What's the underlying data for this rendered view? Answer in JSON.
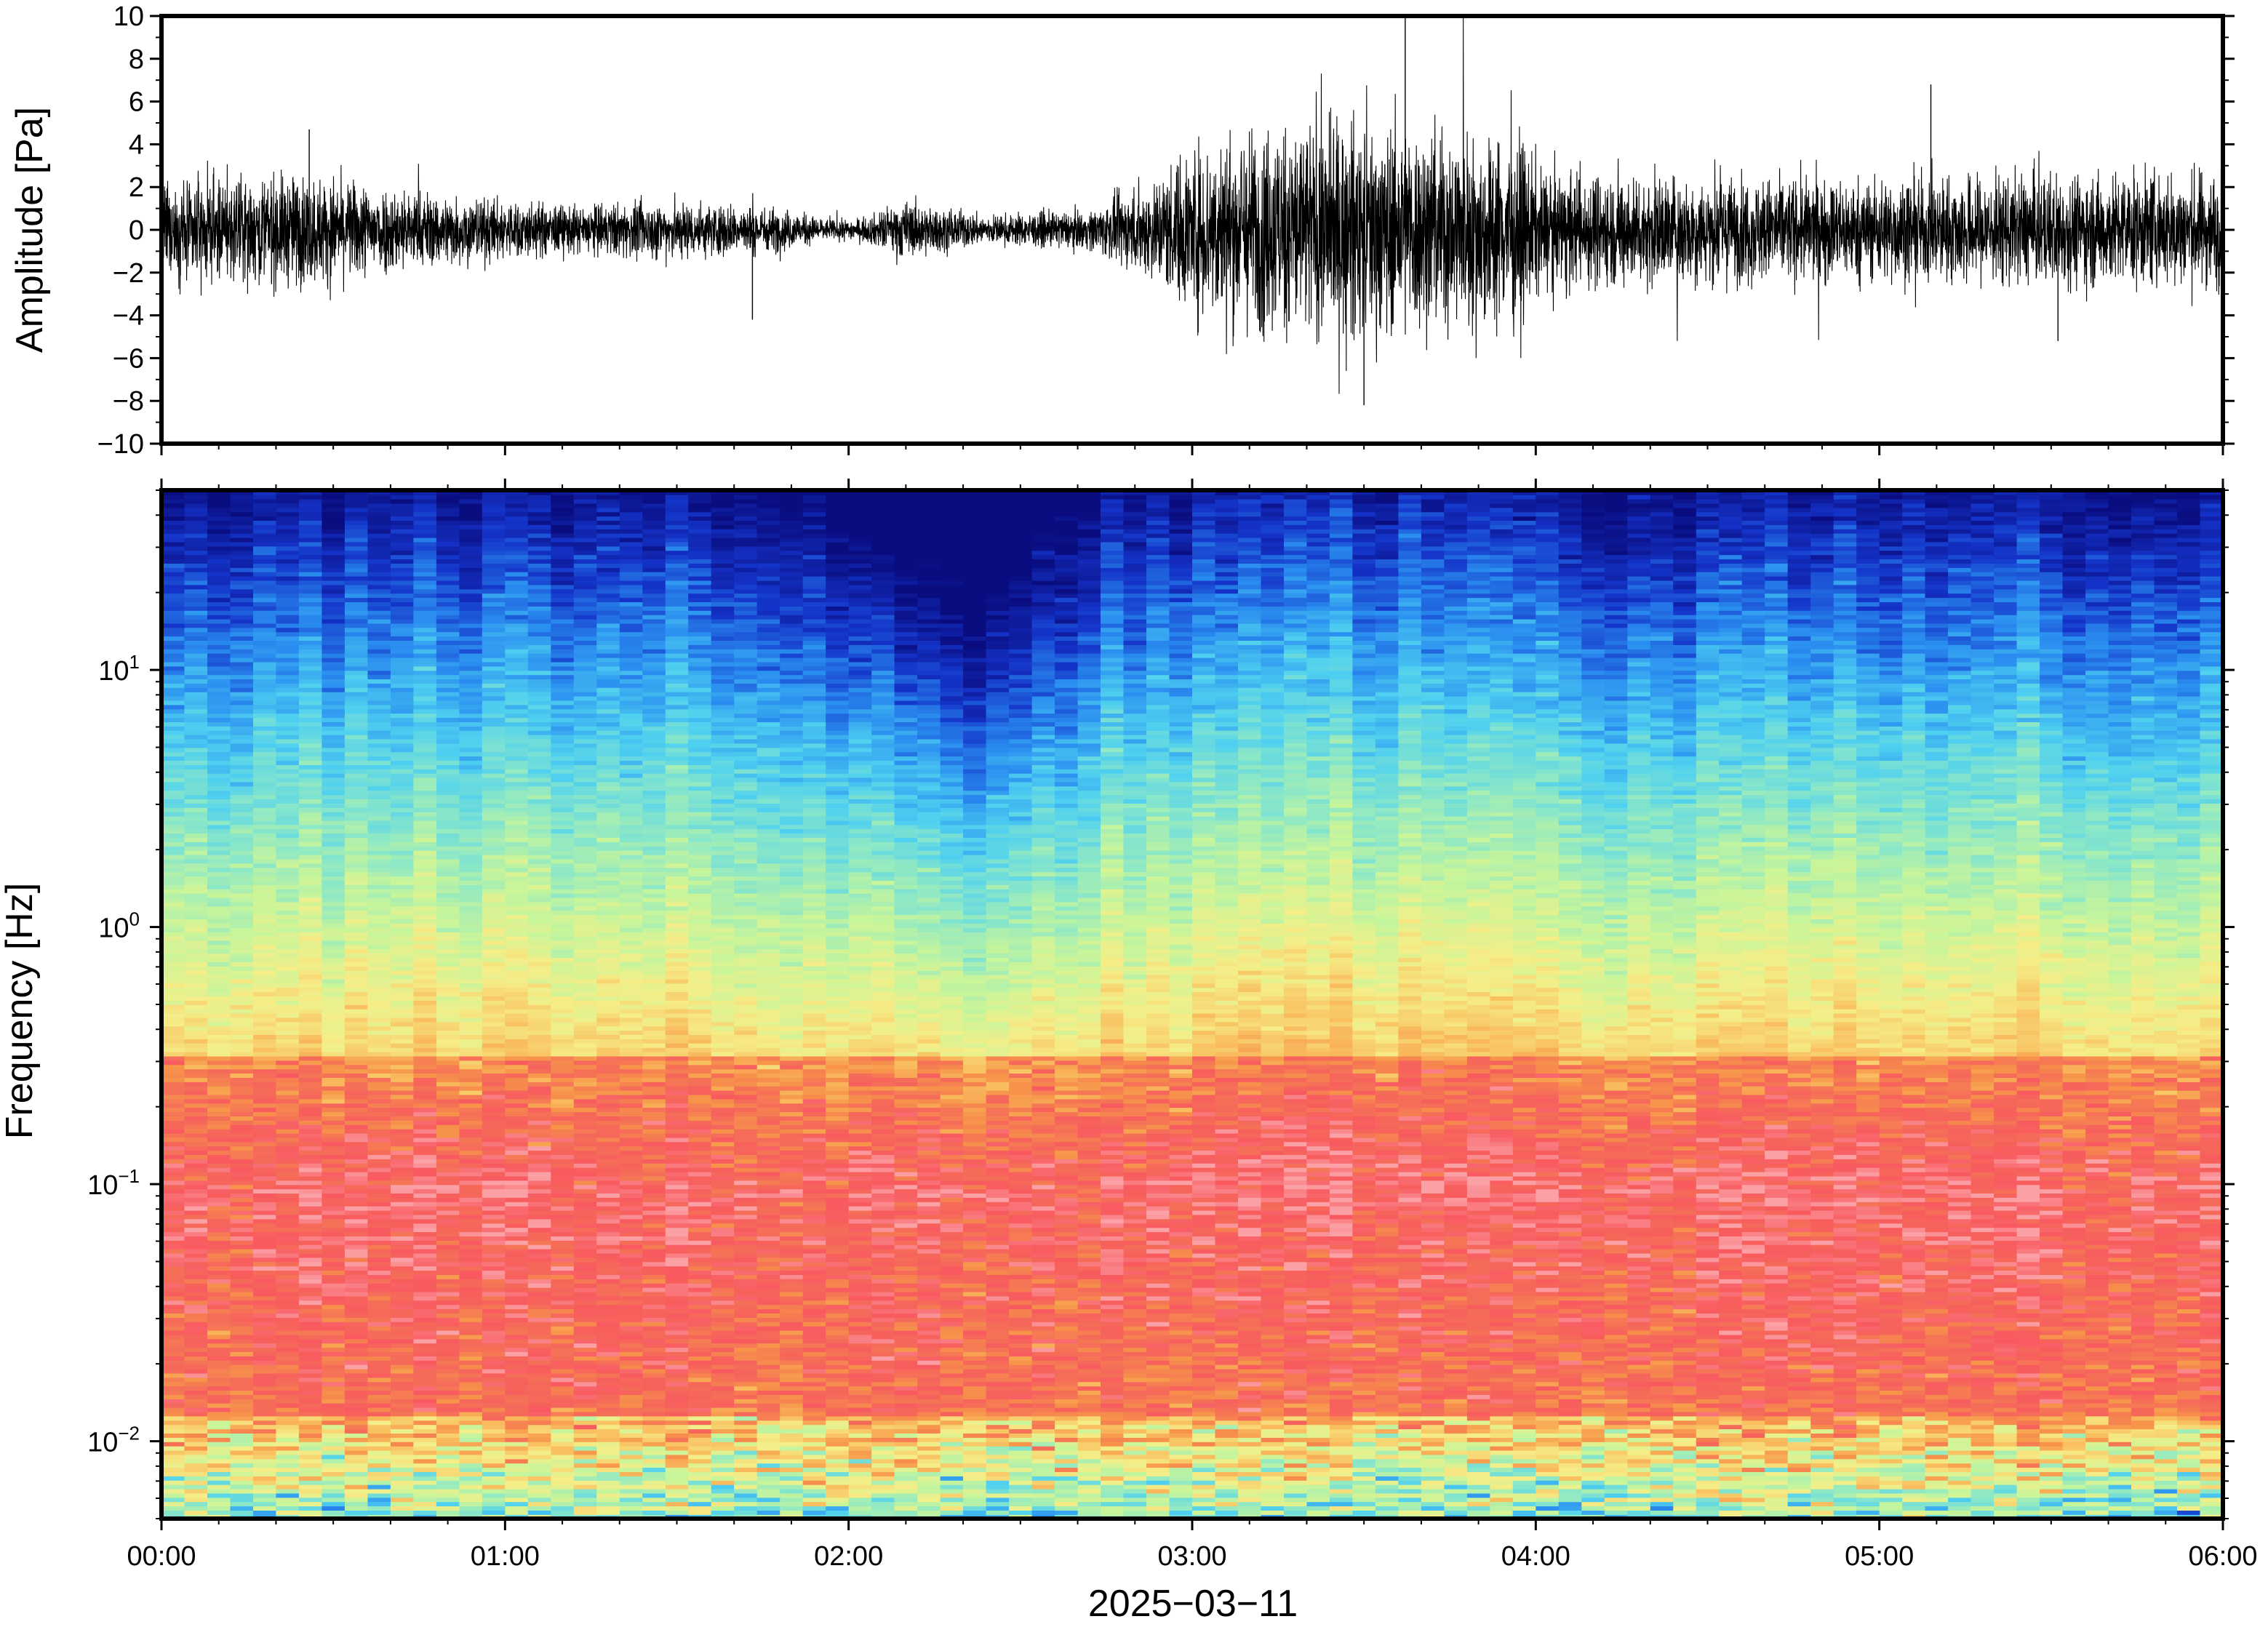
{
  "chart_data": [
    {
      "type": "line",
      "ylabel": "Amplitude [Pa]",
      "ylim": [
        -10,
        10
      ],
      "y_ticks": [
        "10",
        "8",
        "6",
        "4",
        "2",
        "0",
        "−2",
        "−4",
        "−6",
        "−8",
        "−10"
      ],
      "x_ticks": [
        "00:00",
        "01:00",
        "02:00",
        "03:00",
        "04:00",
        "05:00",
        "06:00"
      ],
      "xlim_hours": [
        0,
        6
      ],
      "line_color": "#000000",
      "envelope": [
        {
          "t": 0.0,
          "a": 1.9
        },
        {
          "t": 0.4,
          "a": 2.3
        },
        {
          "t": 0.8,
          "a": 1.5
        },
        {
          "t": 1.2,
          "a": 1.0
        },
        {
          "t": 1.5,
          "a": 1.2
        },
        {
          "t": 1.8,
          "a": 0.9
        },
        {
          "t": 1.95,
          "a": 0.4
        },
        {
          "t": 2.05,
          "a": 0.5
        },
        {
          "t": 2.15,
          "a": 1.2
        },
        {
          "t": 2.4,
          "a": 0.6
        },
        {
          "t": 2.7,
          "a": 0.8
        },
        {
          "t": 2.9,
          "a": 2.2
        },
        {
          "t": 3.0,
          "a": 3.5
        },
        {
          "t": 3.3,
          "a": 4.6
        },
        {
          "t": 3.6,
          "a": 4.3
        },
        {
          "t": 3.95,
          "a": 3.8
        },
        {
          "t": 4.02,
          "a": 2.4
        },
        {
          "t": 4.5,
          "a": 2.2
        },
        {
          "t": 5.0,
          "a": 2.1
        },
        {
          "t": 5.5,
          "a": 2.3
        },
        {
          "t": 6.0,
          "a": 2.4
        }
      ],
      "peaks": [
        {
          "t": 0.43,
          "v": 4.7
        },
        {
          "t": 3.62,
          "v": 9.9
        },
        {
          "t": 3.5,
          "v": -8.2
        },
        {
          "t": 5.15,
          "v": 6.8
        },
        {
          "t": 5.52,
          "v": -5.2
        },
        {
          "t": 1.72,
          "v": -4.2
        }
      ]
    },
    {
      "type": "heatmap",
      "ylabel": "Frequency [Hz]",
      "yscale": "log",
      "ylim": [
        0.005,
        50
      ],
      "y_ticks": [
        {
          "base": "10",
          "exp": "1",
          "value": 10
        },
        {
          "base": "10",
          "exp": "0",
          "value": 1
        },
        {
          "base": "10",
          "exp": "−1",
          "value": 0.1
        },
        {
          "base": "10",
          "exp": "−2",
          "value": 0.01
        }
      ],
      "x_ticks": [
        "00:00",
        "01:00",
        "02:00",
        "03:00",
        "04:00",
        "05:00",
        "06:00"
      ],
      "xlim_hours": [
        0,
        6
      ],
      "xlabel": "2025−03−11",
      "colormap": [
        "#0a0d80",
        "#1433c8",
        "#2a8ef0",
        "#4fd0f0",
        "#8de8c6",
        "#c8f59a",
        "#f5ee88",
        "#f9c060",
        "#f7944a",
        "#f56e58",
        "#f85a5f",
        "#fba0a5"
      ],
      "low_band_note": "quieter band near 02:00–02:40"
    }
  ]
}
